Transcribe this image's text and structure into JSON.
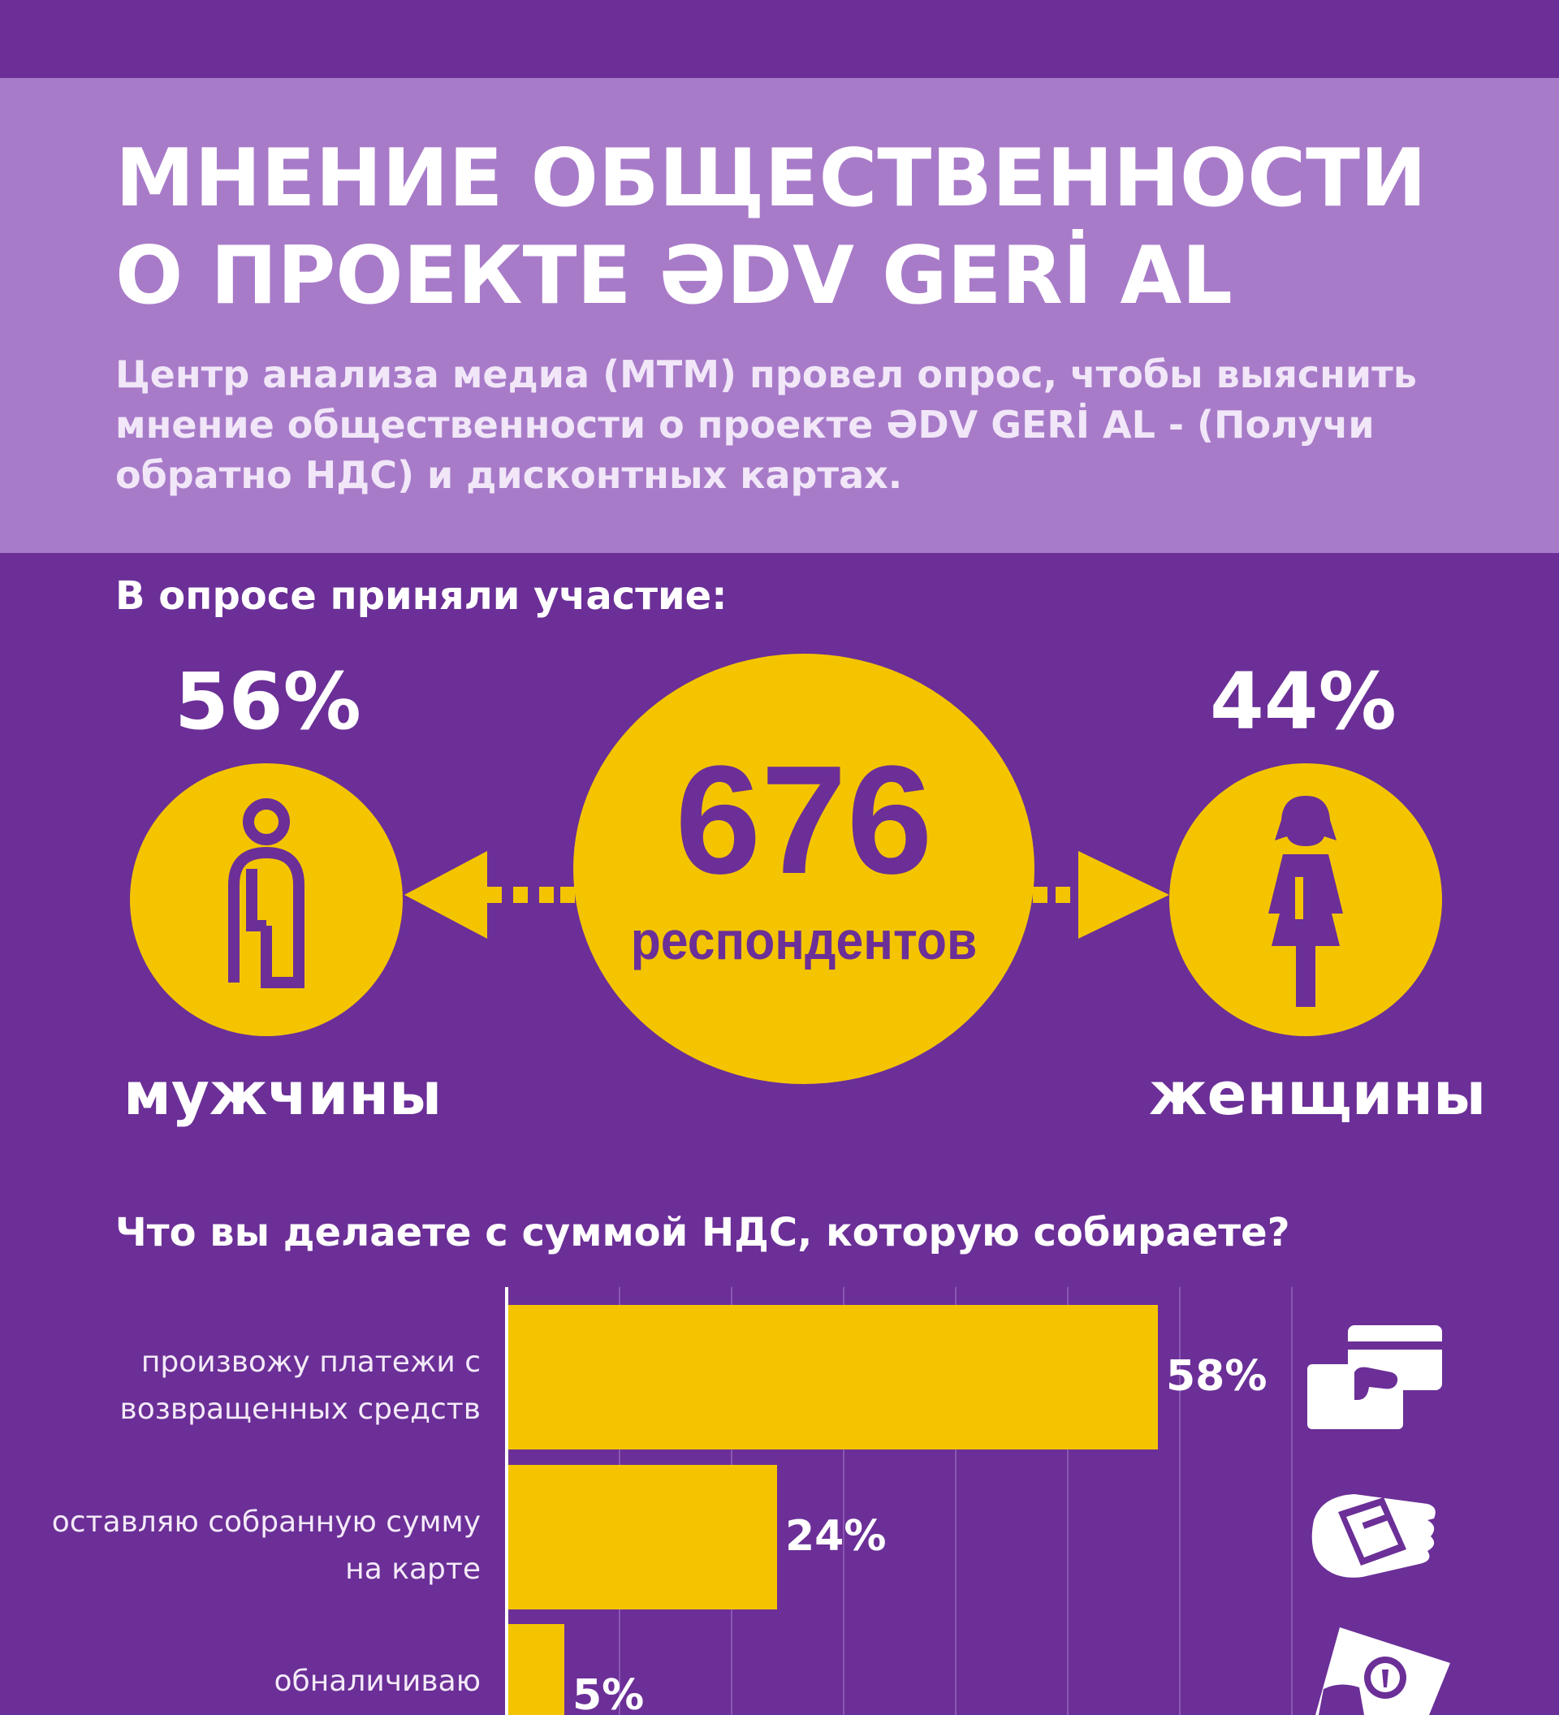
{
  "header": {
    "title_line1": "МНЕНИЕ ОБЩЕСТВЕННОСТИ",
    "title_line2": "О ПРОЕКТЕ ƏDV GERİ AL",
    "intro": "Центр анализа медиа (MTM) провел опрос, чтобы выяснить мнение общественности о проекте ƏDV GERİ AL - (Получи обратно НДС) и дисконтных картах."
  },
  "participants": {
    "heading": "В опросе приняли участие:",
    "total": "676",
    "total_label": "респондентов",
    "men_pct": "56%",
    "men_label": "мужчины",
    "women_pct": "44%",
    "women_label": "женщины",
    "icons": {
      "men": "man-icon",
      "women": "woman-icon"
    }
  },
  "question": {
    "heading": "Что вы делаете с суммой НДС, которую собираете?"
  },
  "colors": {
    "background": "#6b2f97",
    "header": "#a87bc9",
    "accent": "#f4c400",
    "text": "#ffffff"
  },
  "chart_data": {
    "type": "bar",
    "orientation": "horizontal",
    "title": "Что вы делаете с суммой НДС, которую собираете?",
    "categories": [
      "произвожу платежи с возвращенных средств",
      "оставляю собранную сумму на карте",
      "обналичиваю"
    ],
    "values": [
      58,
      24,
      5
    ],
    "value_labels": [
      "58%",
      "24%",
      "5%"
    ],
    "row_icons": [
      "hand-card-payment-icon",
      "hands-card-icon",
      "cash-withdraw-icon"
    ],
    "xlim": [
      0,
      70
    ],
    "grid": true
  }
}
